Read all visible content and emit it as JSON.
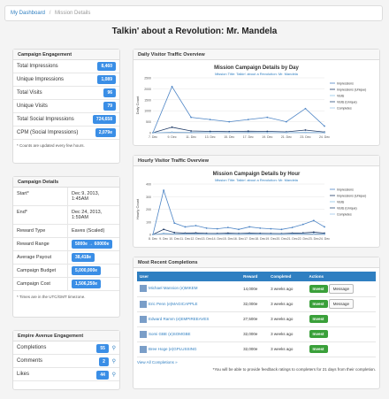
{
  "breadcrumb": {
    "home": "My Dashboard",
    "sep": "/",
    "current": "Mission Details"
  },
  "page_title": "Talkin' about a Revolution: Mr. Mandela",
  "engagement": {
    "title": "Campaign Engagement",
    "rows": [
      {
        "label": "Total Impressions",
        "value": "8,460"
      },
      {
        "label": "Unique Impressions",
        "value": "1,089"
      },
      {
        "label": "Total Visits",
        "value": "96"
      },
      {
        "label": "Unique Visits",
        "value": "79"
      },
      {
        "label": "Total Social Impressions",
        "value": "724,658"
      },
      {
        "label": "CPM (Social Impressions)",
        "value": "2,079e"
      }
    ],
    "note": "* Counts are updated every few hours."
  },
  "details": {
    "title": "Campaign Details",
    "rows": [
      {
        "label": "Start*",
        "value": "Dec 9, 2013, 1:45AM"
      },
      {
        "label": "End*",
        "value": "Dec 24, 2013, 1:59AM"
      },
      {
        "label": "Reward Type",
        "value": "Eaves (Scaled)"
      },
      {
        "label": "Reward Range",
        "value": "5000e → 60000e"
      },
      {
        "label": "Average Payout",
        "value": "38,418e"
      },
      {
        "label": "Campaign Budget",
        "value": "5,000,000e"
      },
      {
        "label": "Campaign Cost",
        "value": "1,506,250e"
      }
    ],
    "note": "* Times are in the UTC/GMT timezone."
  },
  "empire": {
    "title": "Empire Avenue Engagement",
    "rows": [
      {
        "label": "Completions",
        "value": "55"
      },
      {
        "label": "Comments",
        "value": "2"
      },
      {
        "label": "Likes",
        "value": "44"
      }
    ]
  },
  "daily": {
    "panel_title": "Daily Visitor Traffic Overview",
    "chart_title": "Mission Campaign Details by Day",
    "subtitle": "Mission Title: Talkin' about a Revolution: Mr. Mandela",
    "ylabel": "Daily Count"
  },
  "hourly": {
    "panel_title": "Hourly Visitor Traffic Overview",
    "chart_title": "Mission Campaign Details by Hour",
    "subtitle": "Mission Title: Talkin' about a Revolution: Mr. Mandela",
    "ylabel": "Hourly Count"
  },
  "chart_data": [
    {
      "type": "line",
      "title": "Mission Campaign Details by Day",
      "ylabel": "Daily Count",
      "x": [
        "7. Dec",
        "9. Dec",
        "11. Dec",
        "13. Dec",
        "15. Dec",
        "17. Dec",
        "19. Dec",
        "21. Dec",
        "23. Dec",
        "24. Dec"
      ],
      "ylim": [
        0,
        2500
      ],
      "yticks": [
        "0",
        "500",
        "1000",
        "1500",
        "2000",
        "2500"
      ],
      "series": [
        {
          "name": "Impressions",
          "values": [
            0,
            2100,
            700,
            600,
            500,
            600,
            700,
            500,
            1100,
            300
          ]
        },
        {
          "name": "Impressions (Unique)",
          "values": [
            0,
            250,
            80,
            60,
            50,
            70,
            60,
            40,
            120,
            30
          ]
        },
        {
          "name": "Visits",
          "values": [
            0,
            20,
            10,
            8,
            6,
            9,
            7,
            6,
            12,
            4
          ]
        },
        {
          "name": "Visits (Unique)",
          "values": [
            0,
            15,
            8,
            6,
            5,
            7,
            6,
            5,
            10,
            3
          ]
        },
        {
          "name": "Completes",
          "values": [
            0,
            10,
            6,
            5,
            4,
            5,
            4,
            3,
            8,
            2
          ]
        }
      ]
    },
    {
      "type": "line",
      "title": "Mission Campaign Details by Hour",
      "ylabel": "Hourly Count",
      "x": [
        "8. Dec",
        "9. Dec",
        "10. Dec",
        "11. Dec",
        "12. Dec",
        "13. Dec",
        "14. Dec",
        "15. Dec",
        "16. Dec",
        "17. Dec",
        "18. Dec",
        "19. Dec",
        "20. Dec",
        "21. Dec",
        "22. Dec",
        "23. Dec",
        "24. Dec"
      ],
      "ylim": [
        0,
        400
      ],
      "yticks": [
        "0",
        "100",
        "200",
        "300",
        "400"
      ],
      "series": [
        {
          "name": "Impressions",
          "values": [
            0,
            350,
            90,
            60,
            70,
            50,
            45,
            55,
            40,
            60,
            50,
            45,
            40,
            55,
            80,
            110,
            60
          ]
        },
        {
          "name": "Impressions (Unique)",
          "values": [
            0,
            40,
            15,
            10,
            12,
            9,
            8,
            10,
            8,
            10,
            9,
            8,
            7,
            10,
            12,
            18,
            10
          ]
        },
        {
          "name": "Visits",
          "values": [
            0,
            8,
            4,
            3,
            3,
            2,
            2,
            2,
            2,
            3,
            2,
            2,
            2,
            3,
            3,
            4,
            3
          ]
        },
        {
          "name": "Visits (Unique)",
          "values": [
            0,
            6,
            3,
            2,
            2,
            2,
            2,
            2,
            1,
            2,
            2,
            1,
            1,
            2,
            2,
            3,
            2
          ]
        },
        {
          "name": "Completes",
          "values": [
            0,
            4,
            2,
            2,
            2,
            1,
            1,
            1,
            1,
            2,
            1,
            1,
            1,
            1,
            2,
            2,
            1
          ]
        }
      ]
    }
  ],
  "completions": {
    "panel_title": "Most Recent Completions",
    "headers": [
      "User",
      "Reward",
      "Completed",
      "Actions"
    ],
    "rows": [
      {
        "user": "Michael Mannion (e)MIKEM",
        "reward": "14,000e",
        "completed": "3 weeks ago",
        "msg": true
      },
      {
        "user": "Eric Penn (e)MAGICAPPLE",
        "reward": "32,000e",
        "completed": "3 weeks ago",
        "msg": true
      },
      {
        "user": "Edward Ramm (e)EMPIREEAVES",
        "reward": "27,500e",
        "completed": "3 weeks ago",
        "msg": false
      },
      {
        "user": "Somi GBE (e)SOMGBE",
        "reward": "32,000e",
        "completed": "3 weeks ago",
        "msg": false
      },
      {
        "user": "Bree Hoge (e)GPLUSSING",
        "reward": "32,000e",
        "completed": "3 weeks ago",
        "msg": false
      }
    ],
    "invest_label": "Invest",
    "message_label": "Message",
    "view_all": "View All Completions »",
    "footnote": "*You will be able to provide feedback ratings to completers for 21 days from their completion."
  },
  "colors": {
    "impressions": "#4f86c6",
    "impr_unique": "#1f3a66",
    "visits": "#8ec5ea",
    "visits_unique": "#2c4e7a",
    "completes": "#9fc5e8"
  }
}
